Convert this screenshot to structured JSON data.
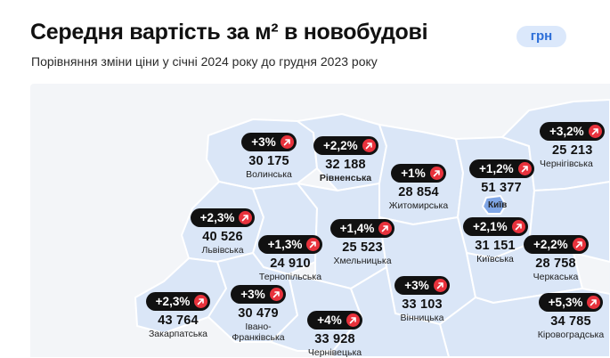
{
  "header": {
    "title": "Середня вартість за м² в новобудові",
    "unit": "грн",
    "subtitle": "Порівняння зміни ціни у січні 2024 року до грудня 2023 року"
  },
  "colors": {
    "region_fill": "#dae6f7",
    "region_fill_dark": "#c6d9f3",
    "border": "#ffffff",
    "pill_bg": "#111111",
    "arrow_bg": "#e8323c",
    "unit_bg": "#dbe8fb",
    "unit_text": "#2e6fd8"
  },
  "map": {
    "kyiv_city_label": "Київ",
    "regions": [
      {
        "id": "volyn",
        "change": "+3%",
        "price": "30 175",
        "name": "Волинська"
      },
      {
        "id": "rivne",
        "change": "+2,2%",
        "price": "32 188",
        "name": "Рівненська"
      },
      {
        "id": "zhytomyr",
        "change": "+1%",
        "price": "28 854",
        "name": "Житомирська"
      },
      {
        "id": "kyiv-city",
        "change": "+1,2%",
        "price": "51 377",
        "name": ""
      },
      {
        "id": "chernihiv",
        "change": "+3,2%",
        "price": "25 213",
        "name": "Чернігівська"
      },
      {
        "id": "lviv",
        "change": "+2,3%",
        "price": "40 526",
        "name": "Львівська"
      },
      {
        "id": "khmelnytskyi",
        "change": "+1,4%",
        "price": "25 523",
        "name": "Хмельницька"
      },
      {
        "id": "ternopil",
        "change": "+1,3%",
        "price": "24 910",
        "name": "Тернопільська"
      },
      {
        "id": "kyiv-oblast",
        "change": "+2,1%",
        "price": "31 151",
        "name": "Київська"
      },
      {
        "id": "cherkasy",
        "change": "+2,2%",
        "price": "28 758",
        "name": "Черкаська"
      },
      {
        "id": "zakarpattia",
        "change": "+2,3%",
        "price": "43 764",
        "name": "Закарпатська"
      },
      {
        "id": "ivano-frankivsk",
        "change": "+3%",
        "price": "30 479",
        "name": "Івано-Франківська"
      },
      {
        "id": "vinnytsia",
        "change": "+3%",
        "price": "33 103",
        "name": "Вінницька"
      },
      {
        "id": "chernivtsi",
        "change": "+4%",
        "price": "33 928",
        "name": "Чернівецька"
      },
      {
        "id": "kirovohrad",
        "change": "+5,3%",
        "price": "34 785",
        "name": "Кіровоградська"
      }
    ]
  }
}
